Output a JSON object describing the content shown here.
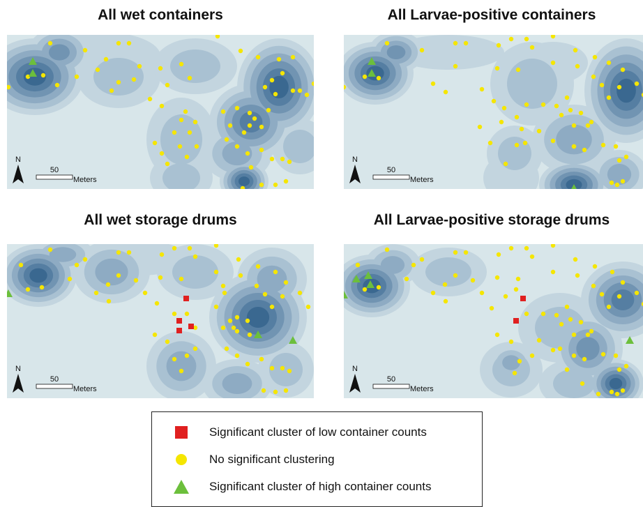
{
  "panels": [
    {
      "title": "All wet containers",
      "north": "N",
      "scale_value": "50",
      "scale_unit": "Meters"
    },
    {
      "title": "All Larvae-positive containers",
      "north": "N",
      "scale_value": "50",
      "scale_unit": "Meters"
    },
    {
      "title": "All wet storage drums",
      "north": "N",
      "scale_value": "50",
      "scale_unit": "Meters"
    },
    {
      "title": "All Larvae-positive storage drums",
      "north": "N",
      "scale_value": "50",
      "scale_unit": "Meters"
    }
  ],
  "legend": {
    "low_cluster": "Significant cluster of low container counts",
    "no_cluster": "No significant clustering",
    "high_cluster": "Significant cluster of high container counts"
  },
  "colors": {
    "background": "#d8e6ea",
    "density": [
      "#c3d5df",
      "#a9c1d2",
      "#8eabc3",
      "#7194b2",
      "#557ea2",
      "#3a6890"
    ],
    "low_cluster": "#e02020",
    "no_cluster": "#f5e600",
    "high_cluster": "#6cbf3c"
  }
}
